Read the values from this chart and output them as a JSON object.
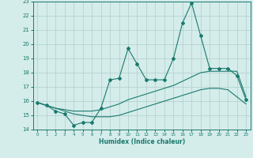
{
  "xlabel": "Humidex (Indice chaleur)",
  "x_values": [
    0,
    1,
    2,
    3,
    4,
    5,
    6,
    7,
    8,
    9,
    10,
    11,
    12,
    13,
    14,
    15,
    16,
    17,
    18,
    19,
    20,
    21,
    22,
    23
  ],
  "line1_y": [
    15.9,
    15.7,
    15.3,
    15.1,
    14.3,
    14.5,
    14.5,
    15.5,
    17.5,
    17.6,
    19.7,
    18.6,
    17.5,
    17.5,
    17.5,
    19.0,
    21.5,
    22.9,
    20.6,
    18.3,
    18.3,
    18.3,
    17.8,
    16.1
  ],
  "line2_y": [
    15.9,
    15.7,
    15.5,
    15.4,
    15.3,
    15.3,
    15.3,
    15.4,
    15.6,
    15.8,
    16.1,
    16.3,
    16.5,
    16.7,
    16.9,
    17.1,
    17.4,
    17.7,
    18.0,
    18.1,
    18.1,
    18.1,
    18.1,
    16.3
  ],
  "line3_y": [
    15.9,
    15.7,
    15.5,
    15.3,
    15.1,
    15.0,
    14.9,
    14.9,
    14.9,
    15.0,
    15.2,
    15.4,
    15.6,
    15.8,
    16.0,
    16.2,
    16.4,
    16.6,
    16.8,
    16.9,
    16.9,
    16.8,
    16.3,
    15.8
  ],
  "line_color": "#1a7a6e",
  "bg_color": "#d4ecea",
  "grid_color": "#b0cece",
  "ylim": [
    14,
    23
  ],
  "xlim": [
    -0.5,
    23.5
  ],
  "yticks": [
    14,
    15,
    16,
    17,
    18,
    19,
    20,
    21,
    22,
    23
  ],
  "xticks": [
    0,
    1,
    2,
    3,
    4,
    5,
    6,
    7,
    8,
    9,
    10,
    11,
    12,
    13,
    14,
    15,
    16,
    17,
    18,
    19,
    20,
    21,
    22,
    23
  ],
  "marker": "D",
  "marker_size": 2.0
}
